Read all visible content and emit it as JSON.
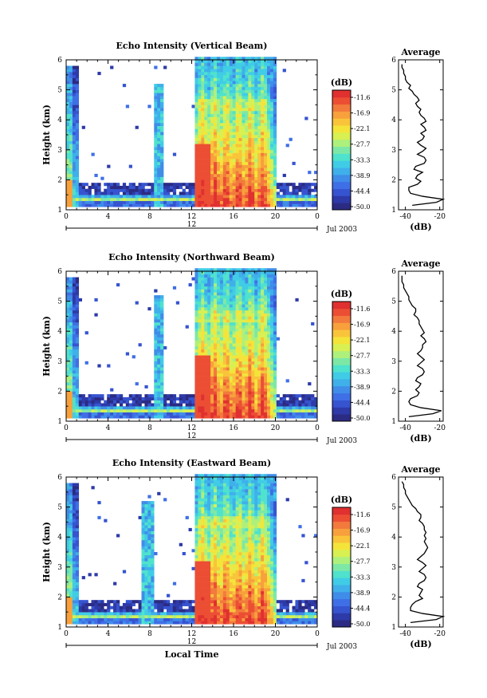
{
  "figure": {
    "date_label": "Jul 2003",
    "day_label": "12",
    "x_axis_label": "Local Time"
  },
  "palette": [
    "#2b2b83",
    "#2d3aa8",
    "#3654d0",
    "#3f6fe6",
    "#3f8de8",
    "#3fb0ea",
    "#40cce6",
    "#4fe2cc",
    "#7de8a6",
    "#aef07c",
    "#d8f052",
    "#f4e43a",
    "#f9c43a",
    "#f7a03c",
    "#f27a3c",
    "#ec4e34",
    "#e03030"
  ],
  "chart_data": [
    {
      "type": "heatmap",
      "title": "Echo Intensity (Vertical Beam)",
      "ylabel": "Height (km)",
      "xlabel": "",
      "x_ticks": [
        "0",
        "4",
        "8",
        "12",
        "16",
        "20",
        "0"
      ],
      "y_ticks": [
        "1",
        "2",
        "3",
        "4",
        "5",
        "6"
      ],
      "xlim": [
        0,
        24
      ],
      "ylim": [
        1,
        6
      ],
      "colorbar": {
        "unit": "(dB)",
        "ticks": [
          "-11.6",
          "-16.9",
          "-22.1",
          "-27.7",
          "-33.3",
          "-38.9",
          "-44.4",
          "-50.0"
        ],
        "range": [
          -50.0,
          -11.6
        ]
      },
      "profile": {
        "title": "Average",
        "xlabel": "(dB)",
        "x_ticks": [
          "-40",
          "-20"
        ],
        "xlim": [
          -44,
          -18
        ],
        "y_ticks": [
          "1",
          "2",
          "3",
          "4",
          "5",
          "6"
        ],
        "ylim": [
          1,
          6
        ],
        "heights": [
          1.15,
          1.25,
          1.35,
          1.45,
          1.55,
          1.65,
          1.75,
          1.85,
          1.95,
          2.05,
          2.15,
          2.25,
          2.35,
          2.45,
          2.55,
          2.65,
          2.75,
          2.85,
          2.95,
          3.05,
          3.15,
          3.25,
          3.35,
          3.45,
          3.55,
          3.65,
          3.75,
          3.85,
          3.95,
          4.05,
          4.15,
          4.25,
          4.35,
          4.45,
          4.55,
          4.65,
          4.75,
          4.85,
          4.95,
          5.05,
          5.15,
          5.25,
          5.35,
          5.45,
          5.55,
          5.65,
          5.75,
          5.85
        ],
        "values": [
          -36,
          -22,
          -18,
          -30,
          -37,
          -38,
          -38,
          -33,
          -31,
          -34,
          -33,
          -30,
          -35,
          -34,
          -29,
          -28,
          -29,
          -33,
          -30,
          -28,
          -31,
          -33,
          -30,
          -29,
          -31,
          -28,
          -29,
          -31,
          -28,
          -29,
          -31,
          -32,
          -31,
          -33,
          -34,
          -32,
          -33,
          -35,
          -36,
          -38,
          -37,
          -39,
          -40,
          -40,
          -41,
          -41,
          -42,
          -42
        ]
      }
    },
    {
      "type": "heatmap",
      "title": "Echo Intensity (Northward Beam)",
      "ylabel": "Height (km)",
      "xlabel": "",
      "x_ticks": [
        "0",
        "4",
        "8",
        "12",
        "16",
        "20",
        "0"
      ],
      "y_ticks": [
        "1",
        "2",
        "3",
        "4",
        "5",
        "6"
      ],
      "xlim": [
        0,
        24
      ],
      "ylim": [
        1,
        6
      ],
      "colorbar": {
        "unit": "(dB)",
        "ticks": [
          "-11.6",
          "-16.9",
          "-22.1",
          "-27.7",
          "-33.3",
          "-38.9",
          "-44.4",
          "-50.0"
        ],
        "range": [
          -50.0,
          -11.6
        ]
      },
      "profile": {
        "title": "Average",
        "xlabel": "(dB)",
        "x_ticks": [
          "-40",
          "-20"
        ],
        "xlim": [
          -44,
          -18
        ],
        "y_ticks": [
          "1",
          "2",
          "3",
          "4",
          "5",
          "6"
        ],
        "ylim": [
          1,
          6
        ],
        "heights": [
          1.15,
          1.25,
          1.35,
          1.45,
          1.55,
          1.65,
          1.75,
          1.85,
          1.95,
          2.05,
          2.15,
          2.25,
          2.35,
          2.45,
          2.55,
          2.65,
          2.75,
          2.85,
          2.95,
          3.05,
          3.15,
          3.25,
          3.35,
          3.45,
          3.55,
          3.65,
          3.75,
          3.85,
          3.95,
          4.05,
          4.15,
          4.25,
          4.35,
          4.45,
          4.55,
          4.65,
          4.75,
          4.85,
          4.95,
          5.05,
          5.15,
          5.25,
          5.35,
          5.45,
          5.55,
          5.65,
          5.75,
          5.85
        ],
        "values": [
          -38,
          -24,
          -19,
          -31,
          -37,
          -38,
          -37,
          -33,
          -32,
          -34,
          -32,
          -31,
          -34,
          -33,
          -30,
          -29,
          -30,
          -33,
          -31,
          -29,
          -31,
          -33,
          -31,
          -30,
          -30,
          -28,
          -29,
          -31,
          -29,
          -30,
          -31,
          -32,
          -32,
          -33,
          -35,
          -34,
          -34,
          -36,
          -37,
          -38,
          -38,
          -39,
          -40,
          -41,
          -41,
          -42,
          -42,
          -42
        ]
      }
    },
    {
      "type": "heatmap",
      "title": "Echo Intensity (Eastward Beam)",
      "ylabel": "Height (km)",
      "xlabel": "Local Time",
      "x_ticks": [
        "0",
        "4",
        "8",
        "12",
        "16",
        "20",
        "0"
      ],
      "y_ticks": [
        "1",
        "2",
        "3",
        "4",
        "5",
        "6"
      ],
      "xlim": [
        0,
        24
      ],
      "ylim": [
        1,
        6
      ],
      "colorbar": {
        "unit": "(dB)",
        "ticks": [
          "-11.6",
          "-16.9",
          "-22.1",
          "-27.7",
          "-33.3",
          "-38.9",
          "-44.4",
          "-50.0"
        ],
        "range": [
          -50.0,
          -11.6
        ]
      },
      "profile": {
        "title": "Average",
        "xlabel": "(dB)",
        "x_ticks": [
          "-40",
          "-20"
        ],
        "xlim": [
          -44,
          -18
        ],
        "y_ticks": [
          "1",
          "2",
          "3",
          "4",
          "5",
          "6"
        ],
        "ylim": [
          1,
          6
        ],
        "heights": [
          1.15,
          1.25,
          1.35,
          1.45,
          1.55,
          1.65,
          1.75,
          1.85,
          1.95,
          2.05,
          2.15,
          2.25,
          2.35,
          2.45,
          2.55,
          2.65,
          2.75,
          2.85,
          2.95,
          3.05,
          3.15,
          3.25,
          3.35,
          3.45,
          3.55,
          3.65,
          3.75,
          3.85,
          3.95,
          4.05,
          4.15,
          4.25,
          4.35,
          4.45,
          4.55,
          4.65,
          4.75,
          4.85,
          4.95,
          5.05,
          5.15,
          5.25,
          5.35,
          5.45,
          5.55,
          5.65,
          5.75,
          5.85
        ],
        "values": [
          -37,
          -22,
          -18,
          -30,
          -37,
          -37,
          -36,
          -34,
          -30,
          -32,
          -31,
          -30,
          -33,
          -32,
          -29,
          -28,
          -29,
          -32,
          -30,
          -28,
          -30,
          -33,
          -31,
          -29,
          -28,
          -27,
          -28,
          -29,
          -28,
          -29,
          -28,
          -29,
          -29,
          -30,
          -32,
          -31,
          -31,
          -33,
          -34,
          -36,
          -37,
          -38,
          -39,
          -40,
          -40,
          -41,
          -41,
          -42
        ]
      }
    }
  ]
}
